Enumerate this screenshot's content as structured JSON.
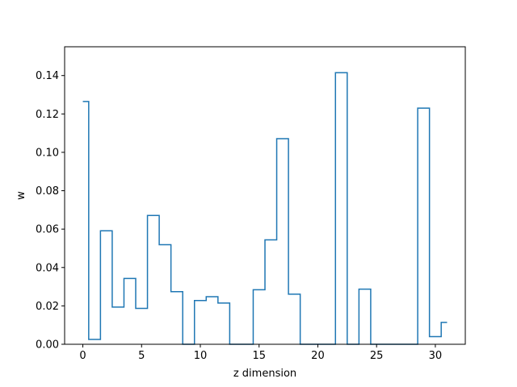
{
  "chart_data": {
    "type": "line",
    "drawstyle": "steps-mid",
    "title": "",
    "xlabel": "z dimension",
    "ylabel": "w",
    "xlim": [
      -1.55,
      32.55
    ],
    "ylim": [
      0,
      0.155
    ],
    "xticks": [
      0,
      5,
      10,
      15,
      20,
      25,
      30
    ],
    "xtick_labels": [
      "0",
      "5",
      "10",
      "15",
      "20",
      "25",
      "30"
    ],
    "yticks": [
      0.0,
      0.02,
      0.04,
      0.06,
      0.08,
      0.1,
      0.12,
      0.14
    ],
    "ytick_labels": [
      "0.00",
      "0.02",
      "0.04",
      "0.06",
      "0.08",
      "0.10",
      "0.12",
      "0.14"
    ],
    "grid": false,
    "legend": "none",
    "series": [
      {
        "color": "#1f77b4",
        "x": [
          0,
          1,
          2,
          3,
          4,
          5,
          6,
          7,
          8,
          9,
          10,
          11,
          12,
          13,
          14,
          15,
          16,
          17,
          18,
          19,
          20,
          21,
          22,
          23,
          24,
          25,
          26,
          27,
          28,
          29,
          30,
          31
        ],
        "y": [
          0.1265,
          0.0025,
          0.0591,
          0.0194,
          0.0343,
          0.0187,
          0.0671,
          0.0519,
          0.0274,
          0.0,
          0.0228,
          0.0248,
          0.0215,
          0.0,
          0.0,
          0.0284,
          0.0544,
          0.1071,
          0.0261,
          0.0,
          0.0,
          0.0,
          0.1415,
          0.0,
          0.0287,
          0.0,
          0.0,
          0.0,
          0.0,
          0.123,
          0.004,
          0.0114
        ]
      }
    ]
  }
}
